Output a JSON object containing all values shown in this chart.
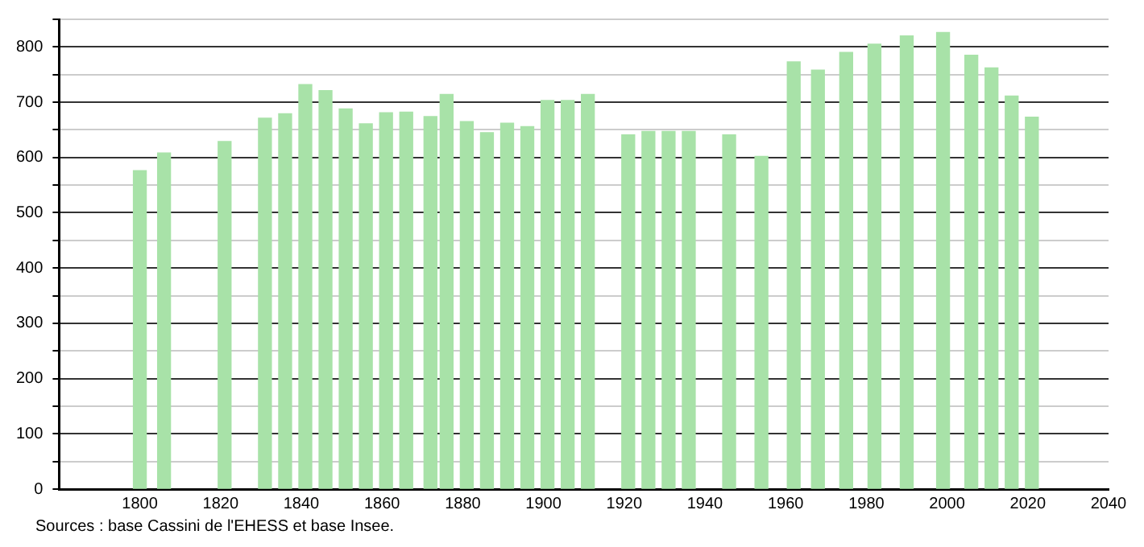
{
  "chart_data": {
    "type": "bar",
    "x": [
      1800,
      1806,
      1821,
      1831,
      1836,
      1841,
      1846,
      1851,
      1856,
      1861,
      1866,
      1872,
      1876,
      1881,
      1886,
      1891,
      1896,
      1901,
      1906,
      1911,
      1921,
      1926,
      1931,
      1936,
      1946,
      1954,
      1962,
      1968,
      1975,
      1982,
      1990,
      1999,
      2006,
      2011,
      2016,
      2021
    ],
    "values": [
      576,
      608,
      629,
      671,
      679,
      732,
      721,
      688,
      661,
      681,
      682,
      674,
      714,
      665,
      645,
      662,
      656,
      703,
      703,
      714,
      641,
      647,
      647,
      647,
      641,
      602,
      773,
      758,
      790,
      805,
      820,
      826,
      785,
      762,
      711,
      673
    ],
    "color": "#a8e2a8",
    "xlim": [
      1780,
      2040
    ],
    "xticks": [
      1800,
      1820,
      1840,
      1860,
      1880,
      1900,
      1920,
      1940,
      1960,
      1980,
      2000,
      2020,
      2040
    ],
    "ylim": [
      0,
      850
    ],
    "yticks": [
      0,
      {
        "value": 50,
        "label": null
      },
      100,
      {
        "value": 150,
        "label": null
      },
      200,
      {
        "value": 250,
        "label": null
      },
      300,
      {
        "value": 350,
        "label": null
      },
      400,
      {
        "value": 450,
        "label": null
      },
      500,
      {
        "value": 550,
        "label": null
      },
      600,
      {
        "value": 650,
        "label": null
      },
      700,
      {
        "value": 750,
        "label": null
      },
      800,
      {
        "value": 850,
        "label": null
      }
    ],
    "grid": "y",
    "annotations": [
      "Sources : base Cassini de l'EHESS et base Insee."
    ]
  }
}
